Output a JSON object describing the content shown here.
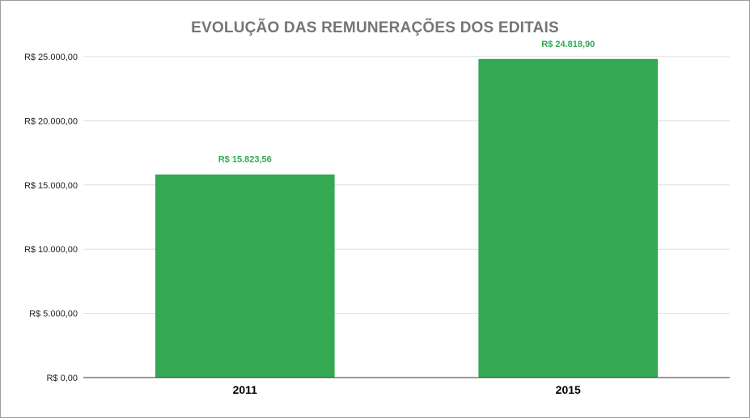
{
  "chart_data": {
    "type": "bar",
    "title": "EVOLUÇÃO DAS REMUNERAÇÕES DOS EDITAIS",
    "categories": [
      "2011",
      "2015"
    ],
    "values": [
      15823.56,
      24818.9
    ],
    "data_labels": [
      "R$ 15.823,56",
      "R$ 24.818,90"
    ],
    "yticks": [
      0,
      5000,
      10000,
      15000,
      20000,
      25000
    ],
    "ytick_labels": [
      "R$ 0,00",
      "R$ 5.000,00",
      "R$ 10.000,00",
      "R$ 15.000,00",
      "R$ 20.000,00",
      "R$ 25.000,00"
    ],
    "ylim": [
      0,
      25000
    ],
    "xlabel": "",
    "ylabel": "",
    "grid": true,
    "legend": "none",
    "bar_color": "#34a853",
    "label_color": "#34a853"
  }
}
